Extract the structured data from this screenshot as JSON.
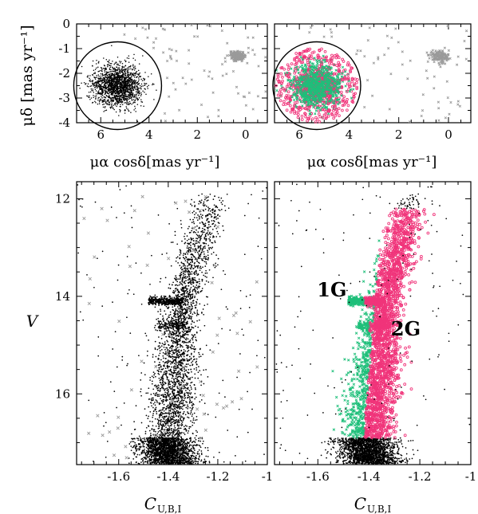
{
  "colors": {
    "background": "#ffffff",
    "frame": "#000000",
    "member_star": "#000000",
    "field_star": "#9a9a9a",
    "population_1g": "#1fbf7a",
    "population_2g": "#f0347a"
  },
  "chart_data": [
    {
      "id": "vpd-all",
      "type": "scatter",
      "title": "",
      "xlabel": "μα cosδ[mas yr⁻¹]",
      "ylabel": "μδ [mas yr⁻¹]",
      "xlim": [
        7.0,
        -0.9
      ],
      "ylim": [
        -4,
        0
      ],
      "xticks": [
        "6",
        "4",
        "2",
        "0"
      ],
      "yticks": [
        "0",
        "-1",
        "-2",
        "-3",
        "-4"
      ],
      "selection_circle": {
        "center": [
          5.3,
          -2.5
        ],
        "radius_mas_yr": 1.5
      },
      "series": [
        {
          "role": "cluster members",
          "color": "#000000",
          "center": [
            5.3,
            -2.55
          ],
          "sigma": [
            0.55,
            0.45
          ]
        },
        {
          "role": "field stars",
          "color": "#9a9a9a",
          "clump_center": [
            0.35,
            -1.3
          ]
        }
      ]
    },
    {
      "id": "vpd-populations",
      "type": "scatter",
      "title": "",
      "xlabel": "μα cosδ[mas yr⁻¹]",
      "ylabel": "",
      "xlim": [
        7.0,
        -0.9
      ],
      "ylim": [
        -4,
        0
      ],
      "xticks": [
        "6",
        "4",
        "2",
        "0"
      ],
      "yticks": [],
      "selection_circle": {
        "center": [
          5.3,
          -2.5
        ],
        "radius_mas_yr": 1.5
      },
      "series": [
        {
          "role": "2G members",
          "color": "#f0347a",
          "center": [
            5.3,
            -2.55
          ]
        },
        {
          "role": "1G members",
          "color": "#1fbf7a",
          "center": [
            5.3,
            -2.55
          ]
        },
        {
          "role": "field stars",
          "color": "#9a9a9a",
          "clump_center": [
            0.35,
            -1.3
          ]
        }
      ]
    },
    {
      "id": "cmd-all",
      "type": "scatter",
      "title": "",
      "xlabel": "C",
      "xlabel_sub": "U,B,I",
      "ylabel": "V",
      "xlim": [
        -1.77,
        -1.0
      ],
      "ylim": [
        17.45,
        11.65
      ],
      "xticks": [
        "-1.6",
        "-1.4",
        "-1.2",
        "-1"
      ],
      "yticks": [
        "12",
        "14",
        "16"
      ],
      "features": {
        "rgb_bump_mag": 14.1,
        "agb_clump_mag": 14.6,
        "turnoff_mag": 17.2,
        "rgb_tip_mag": 11.9
      },
      "series": [
        {
          "role": "cluster members",
          "color": "#000000",
          "marker": "dot"
        },
        {
          "role": "field stars",
          "color": "#9a9a9a",
          "marker": "cross"
        }
      ]
    },
    {
      "id": "cmd-populations",
      "type": "scatter",
      "title": "",
      "xlabel": "C",
      "xlabel_sub": "U,B,I",
      "ylabel": "",
      "xlim": [
        -1.77,
        -1.0
      ],
      "ylim": [
        17.45,
        11.65
      ],
      "xticks": [
        "-1.6",
        "-1.4",
        "-1.2",
        "-1"
      ],
      "yticks": [],
      "series": [
        {
          "name": "1G",
          "color": "#1fbf7a",
          "marker": "cross",
          "c_range": [
            -1.62,
            -1.42
          ]
        },
        {
          "name": "2G",
          "color": "#f0347a",
          "marker": "circle",
          "c_range": [
            -1.42,
            -1.12
          ]
        },
        {
          "role": "other members",
          "color": "#000000",
          "marker": "dot"
        }
      ],
      "annotations": [
        {
          "text": "1G",
          "color": "#1fbf7a",
          "at": [
            -1.545,
            14.0
          ]
        },
        {
          "text": "2G",
          "color": "#f0347a",
          "at": [
            -1.255,
            14.8
          ]
        }
      ]
    }
  ]
}
